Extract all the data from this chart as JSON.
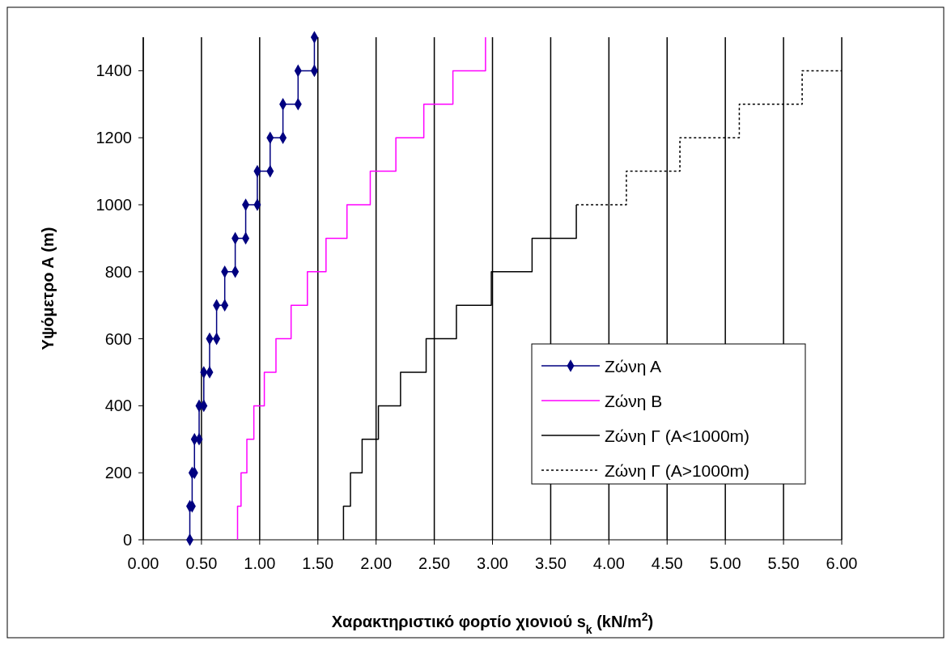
{
  "chart_data": {
    "type": "line",
    "xlabel": "Χαρακτηριστικό φορτίο χιονιού s$_{k}$ (kN/m$^{2}$)",
    "ylabel": "Υψόμετρο Α (m)",
    "xlim": [
      0,
      6
    ],
    "xticks": [
      {
        "value": 0,
        "label": "0.00"
      },
      {
        "value": 0.5,
        "label": "0.50"
      },
      {
        "value": 1,
        "label": "1.00"
      },
      {
        "value": 1.5,
        "label": "1.50"
      },
      {
        "value": 2,
        "label": "2.00"
      },
      {
        "value": 2.5,
        "label": "2.50"
      },
      {
        "value": 3,
        "label": "3.00"
      },
      {
        "value": 3.5,
        "label": "3.50"
      },
      {
        "value": 4,
        "label": "4.00"
      },
      {
        "value": 4.5,
        "label": "4.50"
      },
      {
        "value": 5,
        "label": "5.00"
      },
      {
        "value": 5.5,
        "label": "5.50"
      },
      {
        "value": 6,
        "label": "6.00"
      }
    ],
    "ylim": [
      0,
      1500
    ],
    "yticks": [
      0,
      200,
      400,
      600,
      800,
      1000,
      1200,
      1400
    ],
    "grid": "x",
    "legend": "right",
    "series": [
      {
        "name": "Ζώνη Α",
        "color": "#000080",
        "marker": "diamond",
        "line_style": "solid",
        "x": [
          0.4,
          0.4,
          0.42,
          0.42,
          0.44,
          0.44,
          0.48,
          0.48,
          0.52,
          0.52,
          0.57,
          0.57,
          0.63,
          0.63,
          0.7,
          0.7,
          0.79,
          0.79,
          0.88,
          0.88,
          0.98,
          0.98,
          1.09,
          1.09,
          1.2,
          1.2,
          1.33,
          1.33,
          1.47,
          1.47
        ],
        "values": [
          0,
          100,
          100,
          200,
          200,
          300,
          300,
          400,
          400,
          500,
          500,
          600,
          600,
          700,
          700,
          800,
          800,
          900,
          900,
          1000,
          1000,
          1100,
          1100,
          1200,
          1200,
          1300,
          1300,
          1400,
          1400,
          1500
        ]
      },
      {
        "name": "Ζώνη Β",
        "color": "#ff00ff",
        "marker": "none",
        "line_style": "solid",
        "x": [
          0.81,
          0.81,
          0.84,
          0.84,
          0.89,
          0.89,
          0.95,
          0.95,
          1.04,
          1.04,
          1.14,
          1.14,
          1.27,
          1.27,
          1.41,
          1.41,
          1.57,
          1.57,
          1.75,
          1.75,
          1.95,
          1.95,
          2.17,
          2.17,
          2.41,
          2.41,
          2.66,
          2.66,
          2.94,
          2.94
        ],
        "values": [
          0,
          100,
          100,
          200,
          200,
          300,
          300,
          400,
          400,
          500,
          500,
          600,
          600,
          700,
          700,
          800,
          800,
          900,
          900,
          1000,
          1000,
          1100,
          1100,
          1200,
          1200,
          1300,
          1300,
          1400,
          1400,
          1500
        ]
      },
      {
        "name": "Ζώνη Γ (Α<1000m)",
        "color": "#000000",
        "marker": "none",
        "line_style": "solid",
        "x": [
          1.72,
          1.72,
          1.78,
          1.78,
          1.88,
          1.88,
          2.02,
          2.02,
          2.21,
          2.21,
          2.43,
          2.43,
          2.69,
          2.69,
          2.99,
          2.99,
          3.34,
          3.34,
          3.72,
          3.72
        ],
        "values": [
          0,
          100,
          100,
          200,
          200,
          300,
          300,
          400,
          400,
          500,
          500,
          600,
          600,
          700,
          700,
          800,
          800,
          900,
          900,
          1000
        ]
      },
      {
        "name": "Ζώνη Γ (Α>1000m)",
        "color": "#000000",
        "marker": "none",
        "line_style": "dotted",
        "x": [
          3.72,
          4.15,
          4.15,
          4.61,
          4.61,
          5.12,
          5.12,
          5.66,
          5.66,
          6.0
        ],
        "values": [
          1000,
          1000,
          1100,
          1100,
          1200,
          1200,
          1300,
          1300,
          1400,
          1400
        ]
      }
    ]
  }
}
